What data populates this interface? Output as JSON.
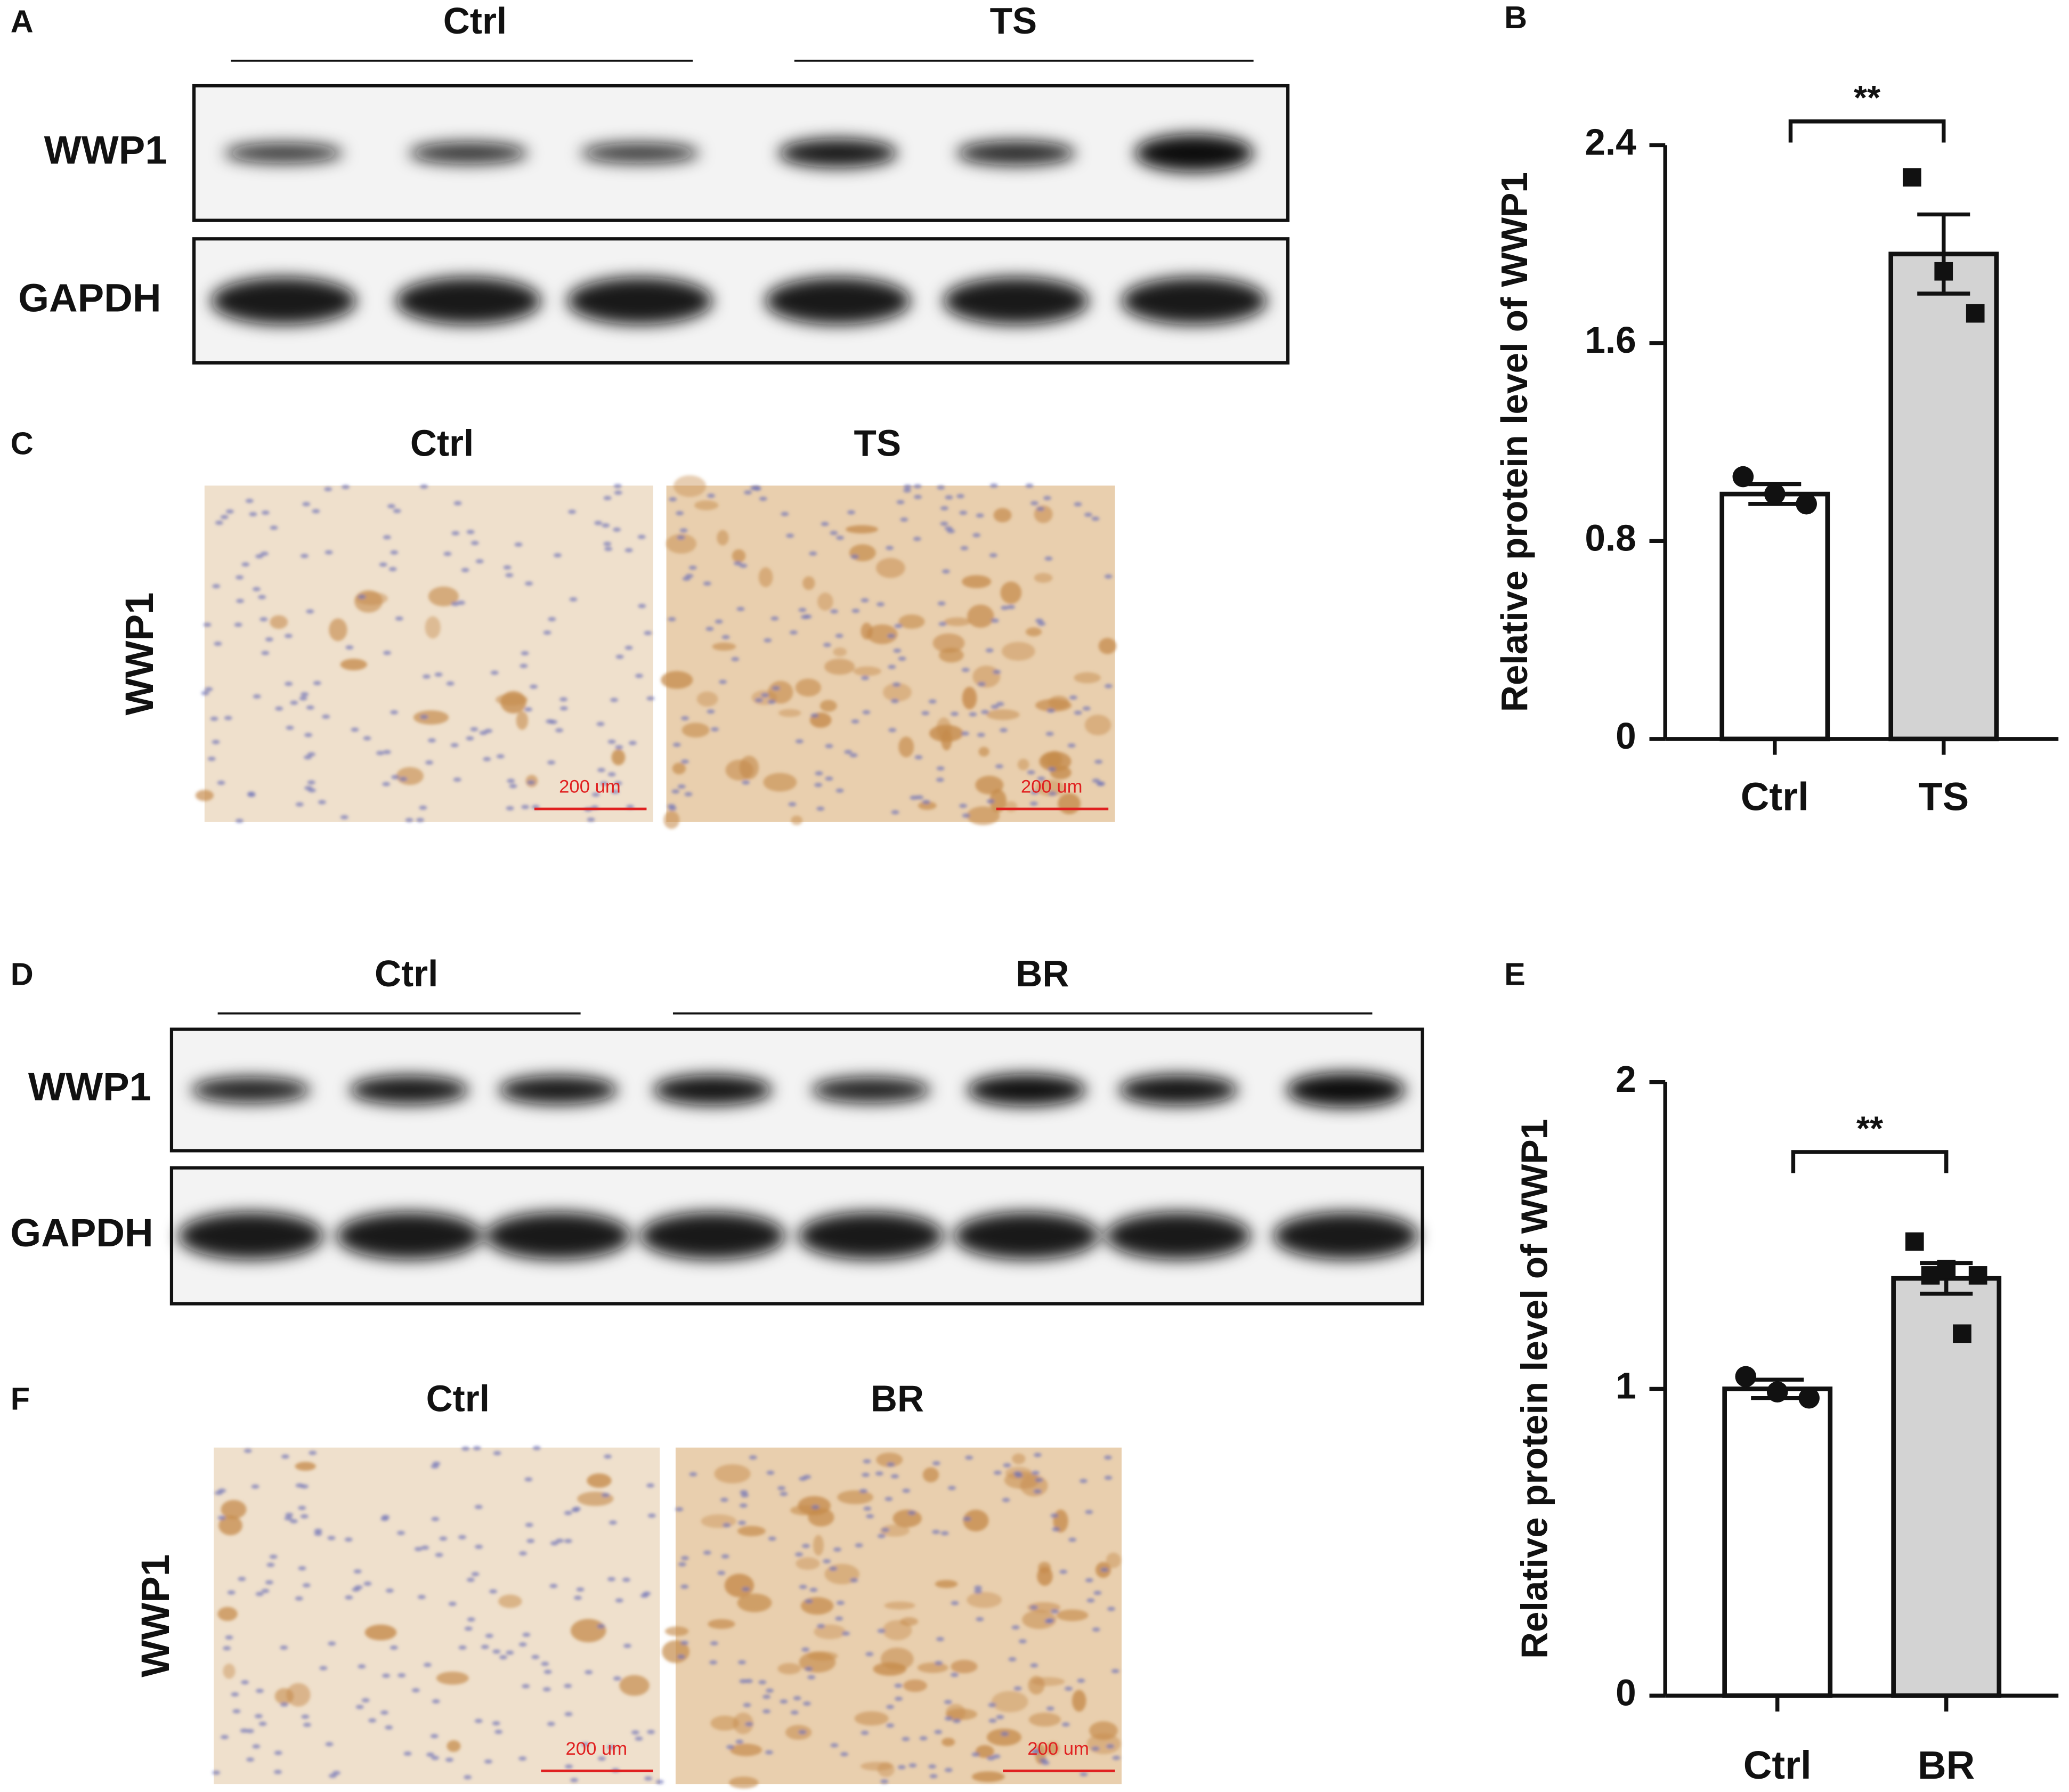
{
  "panels": {
    "A": {
      "label": "A",
      "groups": [
        "Ctrl",
        "TS"
      ],
      "rows": [
        "WWP1",
        "GAPDH"
      ]
    },
    "C": {
      "label": "C",
      "groups": [
        "Ctrl",
        "TS"
      ],
      "row": "WWP1",
      "scale_bars": [
        "200 um",
        "200 um"
      ]
    },
    "D": {
      "label": "D",
      "groups": [
        "Ctrl",
        "BR"
      ],
      "rows": [
        "WWP1",
        "GAPDH"
      ]
    },
    "F": {
      "label": "F",
      "groups": [
        "Ctrl",
        "BR"
      ],
      "row": "WWP1",
      "scale_bars": [
        "200 um",
        "200 um"
      ]
    }
  },
  "chart_data": [
    {
      "type": "bar",
      "panel_label": "B",
      "y_label": "Relative protein level of WWP1",
      "categories": [
        "Ctrl",
        "TS"
      ],
      "values": [
        0.99,
        1.96
      ],
      "errors": [
        0.04,
        0.16
      ],
      "points": [
        [
          1.06,
          0.99,
          0.95
        ],
        [
          2.27,
          1.89,
          1.72
        ]
      ],
      "colors": [
        "#ffffff",
        "#d3d3d3"
      ],
      "markers": [
        "circle",
        "square"
      ],
      "ylim": [
        0,
        2.4
      ],
      "yticks": [
        0,
        0.8,
        1.6,
        2.4
      ],
      "annotation": "**"
    },
    {
      "type": "bar",
      "panel_label": "E",
      "y_label": "Relative protein level of WWP1",
      "categories": [
        "Ctrl",
        "BR"
      ],
      "values": [
        1.0,
        1.36
      ],
      "errors": [
        0.03,
        0.05
      ],
      "points": [
        [
          1.04,
          0.99,
          0.97
        ],
        [
          1.48,
          1.39,
          1.37,
          1.37,
          1.18
        ]
      ],
      "colors": [
        "#ffffff",
        "#d3d3d3"
      ],
      "markers": [
        "circle",
        "square"
      ],
      "ylim": [
        0,
        2
      ],
      "yticks": [
        0,
        1,
        2
      ],
      "annotation": "**"
    }
  ]
}
